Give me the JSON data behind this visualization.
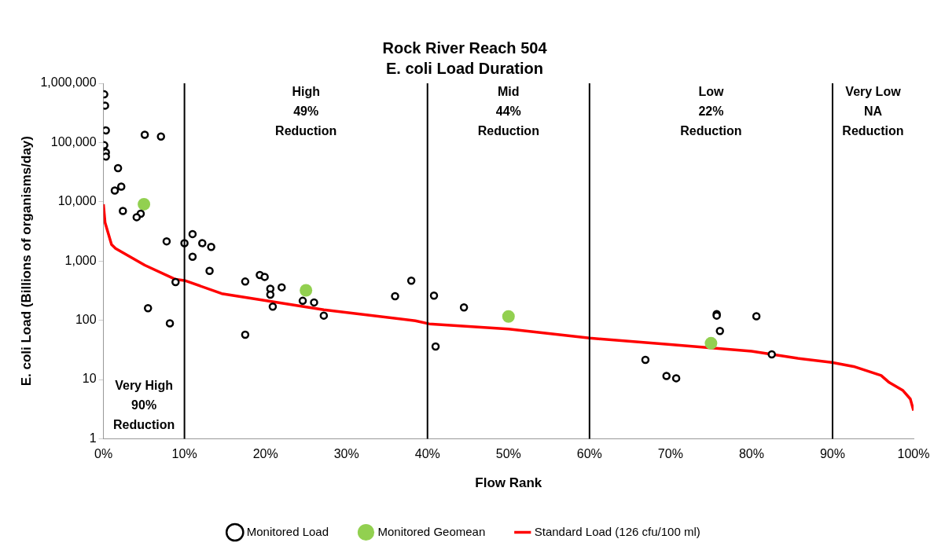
{
  "chart_data": {
    "type": "scatter",
    "title": "Rock River Reach 504",
    "subtitle": "E. coli Load Duration",
    "xlabel": "Flow Rank",
    "ylabel": "E. coli Load (Billions of organisms/day)",
    "log": "y",
    "grid": false,
    "legend": "bottom",
    "xlim": [
      0,
      100
    ],
    "xticks": [
      {
        "value": 0,
        "label": "0%"
      },
      {
        "value": 10,
        "label": "10%"
      },
      {
        "value": 20,
        "label": "20%"
      },
      {
        "value": 30,
        "label": "30%"
      },
      {
        "value": 40,
        "label": "40%"
      },
      {
        "value": 50,
        "label": "50%"
      },
      {
        "value": 60,
        "label": "60%"
      },
      {
        "value": 70,
        "label": "70%"
      },
      {
        "value": 80,
        "label": "80%"
      },
      {
        "value": 90,
        "label": "90%"
      },
      {
        "value": 100,
        "label": "100%"
      }
    ],
    "ylim": [
      1,
      1000000
    ],
    "yticks": [
      1,
      10,
      100,
      {
        "value": 1000,
        "label": "1,000"
      },
      {
        "value": 10000,
        "label": "10,000"
      },
      {
        "value": 100000,
        "label": "100,000"
      },
      {
        "value": 1000000,
        "label": "1,000,000"
      }
    ],
    "series": [
      {
        "name": "Monitored Load",
        "marker": "circle",
        "color": "#000000",
        "x": [
          0.1,
          0.2,
          0.3,
          0.1,
          0.3,
          0.3,
          5.1,
          7.1,
          1.8,
          2.2,
          1.4,
          2.4,
          4.6,
          4.1,
          7.8,
          10.0,
          11.0,
          12.2,
          13.3,
          11.0,
          13.1,
          8.9,
          5.5,
          8.2,
          17.5,
          19.3,
          19.9,
          20.6,
          20.6,
          22.0,
          20.9,
          24.6,
          26.0,
          27.2,
          17.5,
          36.0,
          38.0,
          40.8,
          41.0,
          44.5,
          66.9,
          69.5,
          70.7,
          75.7,
          75.7,
          76.1,
          80.6,
          82.5
        ],
        "values": [
          650000,
          420000,
          160000,
          90000,
          68000,
          58000,
          135000,
          126000,
          37000,
          18000,
          15500,
          7000,
          6300,
          5500,
          2150,
          2000,
          2850,
          2000,
          1730,
          1180,
          680,
          440,
          160,
          89,
          450,
          580,
          540,
          340,
          270,
          360,
          170,
          213,
          200,
          120,
          57,
          255,
          465,
          260,
          36,
          165,
          21.5,
          11.5,
          10.5,
          127,
          120,
          66,
          117,
          26.5
        ]
      },
      {
        "name": "Monitored Geomean",
        "marker": "circle",
        "color": "#92d050",
        "x": [
          5.0,
          25.0,
          50.0,
          75.0
        ],
        "values": [
          9100,
          320,
          116,
          41
        ]
      },
      {
        "name": "Standard Load (126 cfu/100 ml)",
        "type": "line",
        "marker": "none",
        "color": "#ff0000",
        "x": [
          0,
          0.2,
          1.0,
          1.5,
          5.1,
          8.9,
          10.0,
          14.6,
          27.2,
          38.5,
          40.2,
          50,
          60,
          70,
          80,
          85.7,
          89.9,
          92.6,
          96.0,
          97.0,
          98.7,
          99.6,
          100
        ],
        "values": [
          9100,
          4450,
          1900,
          1630,
          850,
          490,
          470,
          282,
          150,
          98,
          87,
          71,
          50,
          39,
          30,
          22.8,
          19.4,
          16.6,
          11.7,
          8.9,
          6.5,
          4.7,
          3.0
        ]
      }
    ],
    "ref_lines": [
      {
        "axis": "x",
        "value": 10,
        "color": "#000000"
      },
      {
        "axis": "x",
        "value": 40,
        "color": "#000000"
      },
      {
        "axis": "x",
        "value": 60,
        "color": "#000000"
      },
      {
        "axis": "x",
        "value": 90,
        "color": "#000000"
      }
    ],
    "annotations": [
      "Very High\n90%\nReduction",
      "High\n49%\nReduction",
      "Mid\n44%\nReduction",
      "Low\n22%\nReduction",
      "Very Low\nNA\nReduction"
    ]
  }
}
